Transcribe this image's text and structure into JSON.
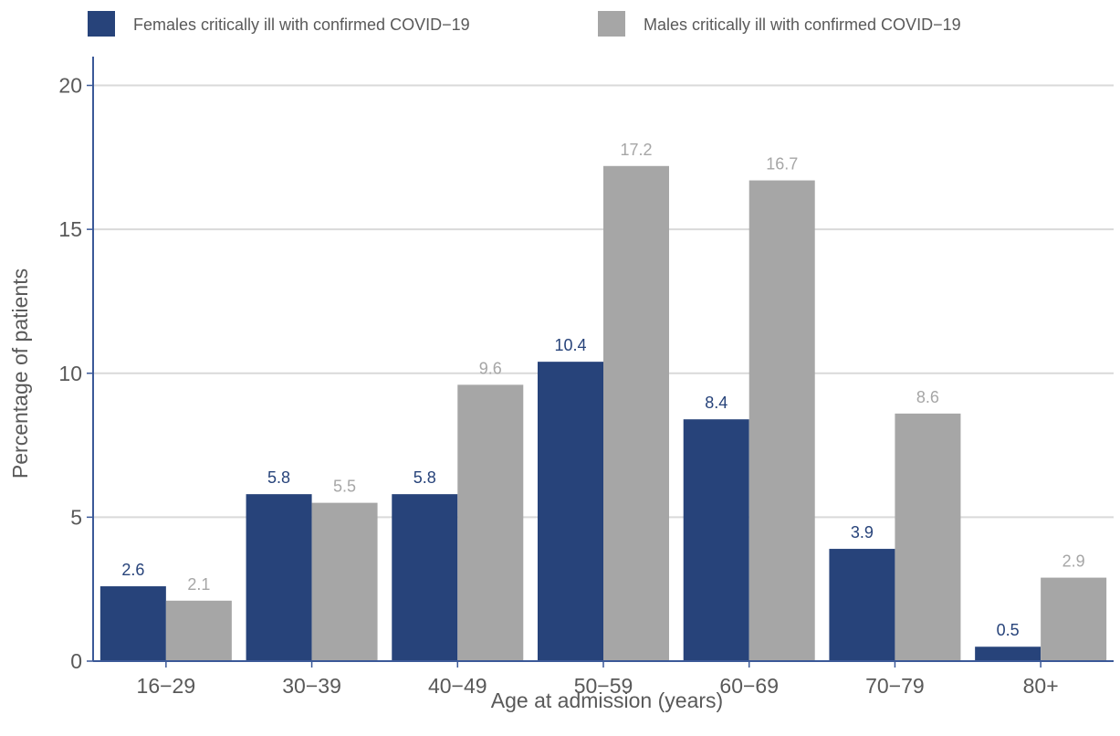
{
  "chart_data": {
    "type": "bar",
    "title": "",
    "xlabel": "Age at admission (years)",
    "ylabel": "Percentage of patients",
    "categories": [
      "16−29",
      "30−39",
      "40−49",
      "50−59",
      "60−69",
      "70−79",
      "80+"
    ],
    "series": [
      {
        "name": "Females critically ill with confirmed COVID−19",
        "color": "#27437a",
        "label_color": "#27437a",
        "values": [
          2.6,
          5.8,
          5.8,
          10.4,
          8.4,
          3.9,
          0.5
        ]
      },
      {
        "name": "Males critically ill with confirmed COVID−19",
        "color": "#a6a6a6",
        "label_color": "#a6a6a6",
        "values": [
          2.1,
          5.5,
          9.6,
          17.2,
          16.7,
          8.6,
          2.9
        ]
      }
    ],
    "ylim": [
      0,
      20
    ],
    "yticks": [
      "0",
      "5",
      "10",
      "15",
      "20"
    ],
    "grid": "horizontal",
    "legend_position": "top",
    "axis_color": "#3b5998",
    "grid_color": "#d9d9d9",
    "text_color": "#595959"
  }
}
